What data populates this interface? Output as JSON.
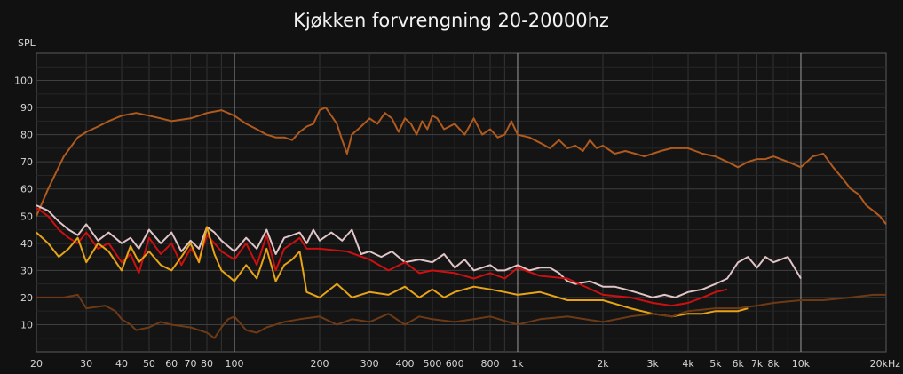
{
  "chart_data": {
    "type": "line",
    "title": "Kjøkken forvrengning 20-20000hz",
    "ylabel": "SPL",
    "xlabel": "",
    "x_scale": "log",
    "xlim": [
      20,
      20000
    ],
    "ylim": [
      0,
      110
    ],
    "grid": true,
    "y_ticks": [
      10,
      20,
      30,
      40,
      50,
      60,
      70,
      80,
      90,
      100
    ],
    "x_ticks": [
      {
        "v": 20,
        "label": "20"
      },
      {
        "v": 30,
        "label": "30"
      },
      {
        "v": 40,
        "label": "40"
      },
      {
        "v": 50,
        "label": "50"
      },
      {
        "v": 60,
        "label": "60"
      },
      {
        "v": 70,
        "label": "70"
      },
      {
        "v": 80,
        "label": "80"
      },
      {
        "v": 100,
        "label": "100"
      },
      {
        "v": 200,
        "label": "200"
      },
      {
        "v": 300,
        "label": "300"
      },
      {
        "v": 400,
        "label": "400"
      },
      {
        "v": 500,
        "label": "500"
      },
      {
        "v": 600,
        "label": "600"
      },
      {
        "v": 800,
        "label": "800"
      },
      {
        "v": 1000,
        "label": "1k"
      },
      {
        "v": 2000,
        "label": "2k"
      },
      {
        "v": 3000,
        "label": "3k"
      },
      {
        "v": 4000,
        "label": "4k"
      },
      {
        "v": 5000,
        "label": "5k"
      },
      {
        "v": 6000,
        "label": "6k"
      },
      {
        "v": 7000,
        "label": "7k"
      },
      {
        "v": 8000,
        "label": "8k"
      },
      {
        "v": 10000,
        "label": "10k"
      },
      {
        "v": 20000,
        "label": "20kHz"
      }
    ],
    "series": [
      {
        "color": "#b05a1e",
        "x": [
          20,
          22,
          25,
          28,
          30,
          33,
          36,
          40,
          45,
          50,
          55,
          60,
          65,
          70,
          75,
          80,
          90,
          95,
          100,
          110,
          120,
          130,
          140,
          150,
          160,
          170,
          180,
          190,
          200,
          210,
          220,
          230,
          240,
          250,
          260,
          280,
          300,
          320,
          340,
          360,
          380,
          400,
          420,
          440,
          460,
          480,
          500,
          520,
          550,
          600,
          650,
          700,
          750,
          800,
          850,
          900,
          950,
          1000,
          1100,
          1200,
          1300,
          1400,
          1500,
          1600,
          1700,
          1800,
          1900,
          2000,
          2200,
          2400,
          2600,
          2800,
          3000,
          3200,
          3500,
          4000,
          4500,
          5000,
          5500,
          6000,
          6500,
          7000,
          7500,
          8000,
          9000,
          10000,
          10500,
          11000,
          12000,
          13000,
          14000,
          15000,
          16000,
          17000,
          18000,
          19000,
          20000
        ],
        "y": [
          50,
          60,
          72,
          79,
          81,
          83,
          85,
          87,
          88,
          87,
          86,
          85,
          85.5,
          86,
          87,
          88,
          89,
          88,
          87,
          84,
          82,
          80,
          79,
          79,
          78,
          81,
          83,
          84,
          89,
          90,
          87,
          84,
          78,
          73,
          80,
          83,
          86,
          84,
          88,
          86,
          81,
          86,
          84,
          80,
          85,
          82,
          87,
          86,
          82,
          84,
          80,
          86,
          80,
          82,
          79,
          80,
          85,
          80,
          79,
          77,
          75,
          78,
          75,
          76,
          74,
          78,
          75,
          76,
          73,
          74,
          73,
          72,
          73,
          74,
          75,
          75,
          73,
          72,
          70,
          68,
          70,
          71,
          71,
          72,
          70,
          68,
          70,
          72,
          73,
          68,
          64,
          60,
          58,
          54,
          52,
          50,
          47
        ]
      },
      {
        "color": "#e0c4c6",
        "x": [
          20,
          22,
          24,
          26,
          28,
          30,
          33,
          36,
          40,
          43,
          46,
          50,
          55,
          60,
          65,
          70,
          75,
          80,
          85,
          90,
          100,
          110,
          120,
          130,
          140,
          150,
          160,
          170,
          180,
          190,
          200,
          220,
          240,
          260,
          280,
          300,
          330,
          360,
          400,
          450,
          500,
          550,
          600,
          650,
          700,
          750,
          800,
          850,
          900,
          1000,
          1100,
          1200,
          1300,
          1400,
          1500,
          1600,
          1800,
          2000,
          2200,
          2400,
          2600,
          2800,
          3000,
          3300,
          3600,
          4000,
          4500,
          5000,
          5500,
          6000,
          6500,
          7000,
          7500,
          8000,
          9000,
          10000
        ],
        "y": [
          54,
          52,
          48,
          45,
          43,
          47,
          41,
          44,
          40,
          42,
          38,
          45,
          40,
          44,
          37,
          41,
          38,
          46,
          44,
          41,
          37,
          42,
          38,
          45,
          36,
          42,
          43,
          44,
          40,
          45,
          41,
          44,
          41,
          45,
          36,
          37,
          35,
          37,
          33,
          34,
          33,
          36,
          31,
          34,
          30,
          31,
          32,
          30,
          30,
          32,
          30,
          31,
          31,
          29,
          26,
          25,
          26,
          24,
          24,
          23,
          22,
          21,
          20,
          21,
          20,
          22,
          23,
          25,
          27,
          33,
          35,
          31,
          35,
          33,
          35,
          27
        ]
      },
      {
        "color": "#cc1010",
        "x": [
          20,
          22,
          24,
          26,
          28,
          30,
          33,
          36,
          40,
          43,
          46,
          50,
          55,
          60,
          65,
          70,
          75,
          80,
          85,
          90,
          100,
          110,
          120,
          130,
          140,
          150,
          160,
          170,
          180,
          200,
          250,
          300,
          350,
          400,
          450,
          500,
          600,
          700,
          800,
          900,
          1000,
          1200,
          1500,
          2000,
          2500,
          3000,
          3500,
          4000,
          4500,
          5000,
          5500
        ],
        "y": [
          53,
          50,
          45,
          42,
          40,
          44,
          38,
          40,
          33,
          36,
          29,
          42,
          36,
          40,
          32,
          38,
          34,
          43,
          40,
          37,
          34,
          40,
          32,
          43,
          30,
          38,
          40,
          42,
          38,
          38,
          37,
          34,
          30,
          33,
          29,
          30,
          29,
          27,
          29,
          27,
          31,
          28,
          27,
          21,
          20,
          18,
          17,
          18,
          20,
          22,
          23
        ]
      },
      {
        "color": "#e7a414",
        "x": [
          20,
          22,
          24,
          26,
          28,
          30,
          33,
          36,
          40,
          43,
          46,
          50,
          55,
          60,
          65,
          70,
          75,
          80,
          85,
          90,
          95,
          100,
          110,
          120,
          130,
          140,
          150,
          160,
          170,
          180,
          200,
          230,
          260,
          300,
          350,
          400,
          450,
          500,
          550,
          600,
          700,
          800,
          900,
          1000,
          1200,
          1500,
          2000,
          2500,
          3000,
          3500,
          4000,
          4500,
          5000,
          5500,
          6000,
          6500
        ],
        "y": [
          44,
          40,
          35,
          38,
          42,
          33,
          40,
          37,
          30,
          39,
          33,
          37,
          32,
          30,
          35,
          40,
          33,
          46,
          36,
          30,
          28,
          26,
          32,
          27,
          38,
          26,
          32,
          34,
          37,
          22,
          20,
          25,
          20,
          22,
          21,
          24,
          20,
          23,
          20,
          22,
          24,
          23,
          22,
          21,
          22,
          19,
          19,
          16,
          14,
          13,
          14,
          14,
          15,
          15,
          15,
          16
        ]
      },
      {
        "color": "#6e3a16",
        "x": [
          20,
          25,
          28,
          30,
          35,
          38,
          40,
          43,
          45,
          50,
          55,
          60,
          70,
          80,
          85,
          90,
          95,
          100,
          110,
          120,
          130,
          150,
          170,
          200,
          230,
          260,
          300,
          350,
          400,
          450,
          500,
          600,
          700,
          800,
          1000,
          1200,
          1500,
          2000,
          2500,
          3000,
          3500,
          4000,
          5000,
          6000,
          7000,
          8000,
          10000,
          12000,
          15000,
          18000,
          20000
        ],
        "y": [
          20,
          20,
          21,
          16,
          17,
          15,
          12,
          10,
          8,
          9,
          11,
          10,
          9,
          7,
          5,
          9,
          12,
          13,
          8,
          7,
          9,
          11,
          12,
          13,
          10,
          12,
          11,
          14,
          10,
          13,
          12,
          11,
          12,
          13,
          10,
          12,
          13,
          11,
          13,
          14,
          13,
          15,
          16,
          16,
          17,
          18,
          19,
          19,
          20,
          21,
          21
        ]
      }
    ]
  }
}
